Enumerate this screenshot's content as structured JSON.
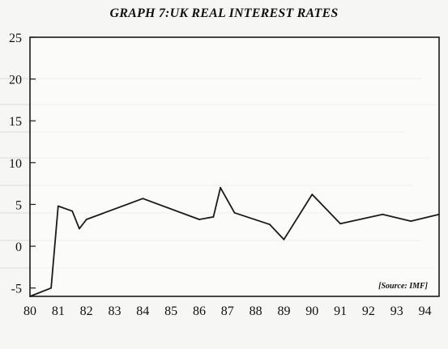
{
  "chart_data": {
    "type": "line",
    "title": "GRAPH 7:UK REAL INTEREST RATES",
    "source": "[Source: IMF]",
    "xlabel": "",
    "ylabel": "",
    "x_tick_labels": [
      "80",
      "81",
      "82",
      "83",
      "84",
      "85",
      "86",
      "87",
      "88",
      "89",
      "90",
      "91",
      "92",
      "93",
      "94"
    ],
    "y_ticks": [
      -5,
      0,
      5,
      10,
      15,
      20,
      25
    ],
    "xlim": [
      1980,
      1994.5
    ],
    "ylim": [
      -6,
      25
    ],
    "grid": false,
    "line_color": "#1a1a1a",
    "series": [
      {
        "points": [
          {
            "x": 1980.0,
            "y": -6.0
          },
          {
            "x": 1980.75,
            "y": -5.0
          },
          {
            "x": 1981.0,
            "y": 4.8
          },
          {
            "x": 1981.5,
            "y": 4.2
          },
          {
            "x": 1981.75,
            "y": 2.1
          },
          {
            "x": 1982.0,
            "y": 3.2
          },
          {
            "x": 1984.0,
            "y": 5.7
          },
          {
            "x": 1986.0,
            "y": 3.2
          },
          {
            "x": 1986.5,
            "y": 3.5
          },
          {
            "x": 1986.75,
            "y": 7.0
          },
          {
            "x": 1987.25,
            "y": 4.0
          },
          {
            "x": 1988.5,
            "y": 2.6
          },
          {
            "x": 1989.0,
            "y": 0.8
          },
          {
            "x": 1990.0,
            "y": 6.2
          },
          {
            "x": 1991.0,
            "y": 2.7
          },
          {
            "x": 1992.5,
            "y": 3.8
          },
          {
            "x": 1993.5,
            "y": 3.0
          },
          {
            "x": 1994.5,
            "y": 3.8
          }
        ]
      }
    ]
  }
}
